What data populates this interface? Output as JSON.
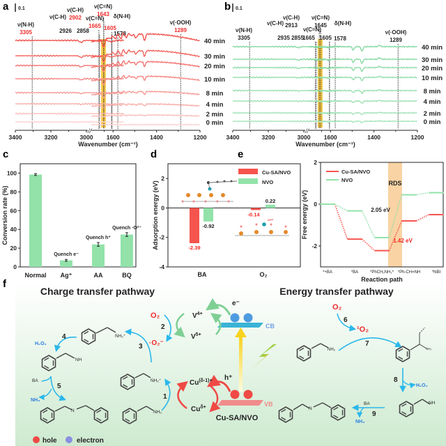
{
  "panel_labels": {
    "a": "a",
    "b": "b",
    "c": "c",
    "d": "d",
    "e": "e",
    "f": "f"
  },
  "chart_data": [
    {
      "panel": "a",
      "type": "line",
      "xlabel": "Wavenumber (cm⁻¹)",
      "x_ticks": [
        "3400",
        "3200",
        "3000",
        "1600",
        "1400",
        "1200"
      ],
      "x_segments": [
        [
          3400,
          2790
        ],
        [
          1700,
          1200
        ]
      ],
      "axis_break": "//",
      "scale_bar": "0.1",
      "series": [
        "40 min",
        "30 min",
        "20 min",
        "10 min",
        "8 min",
        "4 min",
        "2 min",
        "0 min"
      ],
      "series_colors": [
        "#f0504a",
        "#fbd3d1"
      ],
      "highlight_band": [
        1655,
        1633
      ],
      "highlight_color": "#f6c12c",
      "annotations": [
        {
          "name": "ν(N-H)",
          "value": "3305",
          "wavenumber": 3305,
          "color": "#ef2b2b"
        },
        {
          "name": "ν(C-H)",
          "value": "2926",
          "wavenumber": 2926,
          "color": "#222222"
        },
        {
          "name": "ν(C-H)",
          "value": "2902",
          "wavenumber": 2902,
          "color": "#ef2b2b"
        },
        {
          "name": "",
          "value": "2858",
          "wavenumber": 2858,
          "color": "#222222"
        },
        {
          "name": "ν(C=N)",
          "value": "1665",
          "wavenumber": 1665,
          "color": "#ef2b2b"
        },
        {
          "name": "ν(C=N)",
          "value": "1643",
          "wavenumber": 1643,
          "color": "#ef2b2b"
        },
        {
          "name": "δ(N-H)",
          "value": "1605",
          "wavenumber": 1605,
          "color": "#ef2b2b"
        },
        {
          "name": "",
          "value": "1578",
          "wavenumber": 1578,
          "color": "#222222"
        },
        {
          "name": "ν(·OOH)",
          "value": "1289",
          "wavenumber": 1289,
          "color": "#ef2b2b"
        }
      ]
    },
    {
      "panel": "b",
      "type": "line",
      "xlabel": "Wavenumber (cm⁻¹)",
      "x_ticks": [
        "3400",
        "3200",
        "3000",
        "1600",
        "1400",
        "1200"
      ],
      "x_segments": [
        [
          3400,
          2790
        ],
        [
          1700,
          1200
        ]
      ],
      "axis_break": "//",
      "scale_bar": "0.1",
      "series": [
        "40 min",
        "30 min",
        "20 min",
        "10 min",
        "8 min",
        "4 min",
        "2 min",
        "0 min"
      ],
      "series_colors": [
        "#86d9a2",
        "#a9e6bd"
      ],
      "highlight_band": [
        1658,
        1636
      ],
      "highlight_color": "#f6c12c",
      "annotations": [
        {
          "name": "ν(N-H)",
          "value": "3305",
          "wavenumber": 3305,
          "color": "#222222"
        },
        {
          "name": "ν(C-H)",
          "value": "2935",
          "wavenumber": 2935,
          "color": "#222222"
        },
        {
          "name": "ν(C-H)",
          "value": "2913",
          "wavenumber": 2913,
          "color": "#222222"
        },
        {
          "name": "",
          "value": "2855",
          "wavenumber": 2855,
          "color": "#222222"
        },
        {
          "name": "ν(C=N)",
          "value": "1665",
          "wavenumber": 1665,
          "color": "#222222"
        },
        {
          "name": "ν(C=N)",
          "value": "1645",
          "wavenumber": 1645,
          "color": "#222222"
        },
        {
          "name": "δ(N-H)",
          "value": "1605",
          "wavenumber": 1605,
          "color": "#222222"
        },
        {
          "name": "",
          "value": "1578",
          "wavenumber": 1578,
          "color": "#222222"
        },
        {
          "name": "ν(·OOH)",
          "value": "1289",
          "wavenumber": 1289,
          "color": "#222222"
        }
      ]
    },
    {
      "panel": "c",
      "type": "bar",
      "ylabel": "Conversion rate (%)",
      "categories": [
        "Normal",
        "Ag⁺",
        "AA",
        "BQ"
      ],
      "values": [
        98.5,
        7,
        24,
        34.5
      ],
      "errors": [
        1,
        1,
        2,
        2
      ],
      "bar_annotations": [
        "",
        "Quench e⁻",
        "Quench h⁺",
        "Quench ·O²⁻"
      ],
      "ylim": [
        0,
        110
      ],
      "y_ticks": [
        "0",
        "20",
        "40",
        "60",
        "80",
        "100"
      ],
      "color": "#92e2aa"
    },
    {
      "panel": "d",
      "type": "bar",
      "ylabel": "Adsorption energy (eV)",
      "categories": [
        "BA",
        "O₂"
      ],
      "series": [
        {
          "name": "Cu-SA/NVO",
          "values": [
            -2.39,
            -0.14
          ],
          "labels": [
            "-2.39",
            "-0.14"
          ],
          "color": "#f5544e",
          "label_color": "#f5241e"
        },
        {
          "name": "NVO",
          "values": [
            -0.92,
            0.22
          ],
          "labels": [
            "-0.92",
            "0.22"
          ],
          "color": "#92e2aa",
          "label_color": "#222222"
        }
      ],
      "ylim": [
        -4,
        3
      ],
      "y_ticks": [
        "-4",
        "-2",
        "0",
        "2"
      ],
      "legend": "top-right"
    },
    {
      "panel": "e",
      "type": "line",
      "xlabel": "Reaction path",
      "ylabel": "Free energy (eV)",
      "categories": [
        "*+BA",
        "*BA",
        "*PhCH₂NH₂*",
        "*Ph-CH=NH",
        "*NBI"
      ],
      "series": [
        {
          "name": "Cu-SA/NVO",
          "values": [
            0,
            -1.67,
            -2.22,
            -0.8,
            -0.5
          ],
          "color": "#f5544e"
        },
        {
          "name": "NVO",
          "values": [
            0,
            -0.32,
            -1.6,
            0.45,
            0.55
          ],
          "color": "#92e2aa"
        }
      ],
      "ylim": [
        -3,
        2
      ],
      "y_ticks": [
        "-2",
        "0",
        "2"
      ],
      "band_label": "RDS",
      "band_color": "#f9d3a3",
      "annotations": [
        {
          "text": "2.05 eV",
          "color": "#222222"
        },
        {
          "text": "1.42 eV",
          "color": "#f5241e"
        }
      ],
      "legend": "top-left"
    }
  ],
  "scheme": {
    "charge_title": "Charge transfer pathway",
    "energy_title": "Energy transfer pathway",
    "steps": [
      "1",
      "2",
      "3",
      "4",
      "5",
      "6",
      "7",
      "8",
      "9"
    ],
    "o2": "O₂",
    "superoxide": "·O₂⁻",
    "singlet_o2": "¹O₂",
    "h2o2": "H₂O₂",
    "nh3": "NH₃",
    "ba": "BA",
    "nh2": "NH₂",
    "nh2_cation": "ṄH₂⁺",
    "nh": "NH",
    "n": "N",
    "v4": {
      "base": "V",
      "sup": "4+"
    },
    "v5": {
      "base": "V",
      "sup": "5+"
    },
    "cu_reduced": {
      "base": "Cu",
      "sup": "(δ-1)+"
    },
    "cu_oxidized": {
      "base": "Cu",
      "sup": "δ+"
    },
    "cb": "CB",
    "vb": "VB",
    "electron_symbol": "e⁻",
    "hole_symbol": "h⁺",
    "catalyst": "Cu-SA/NVO",
    "legend": {
      "hole": "hole",
      "electron": "electron"
    },
    "colors": {
      "red": "#ef2b2b",
      "blue_text": "#2a7ee0",
      "arrow": "#2bb8ea",
      "cb": "#3ab3d6",
      "vb": "#f08c8c"
    }
  }
}
